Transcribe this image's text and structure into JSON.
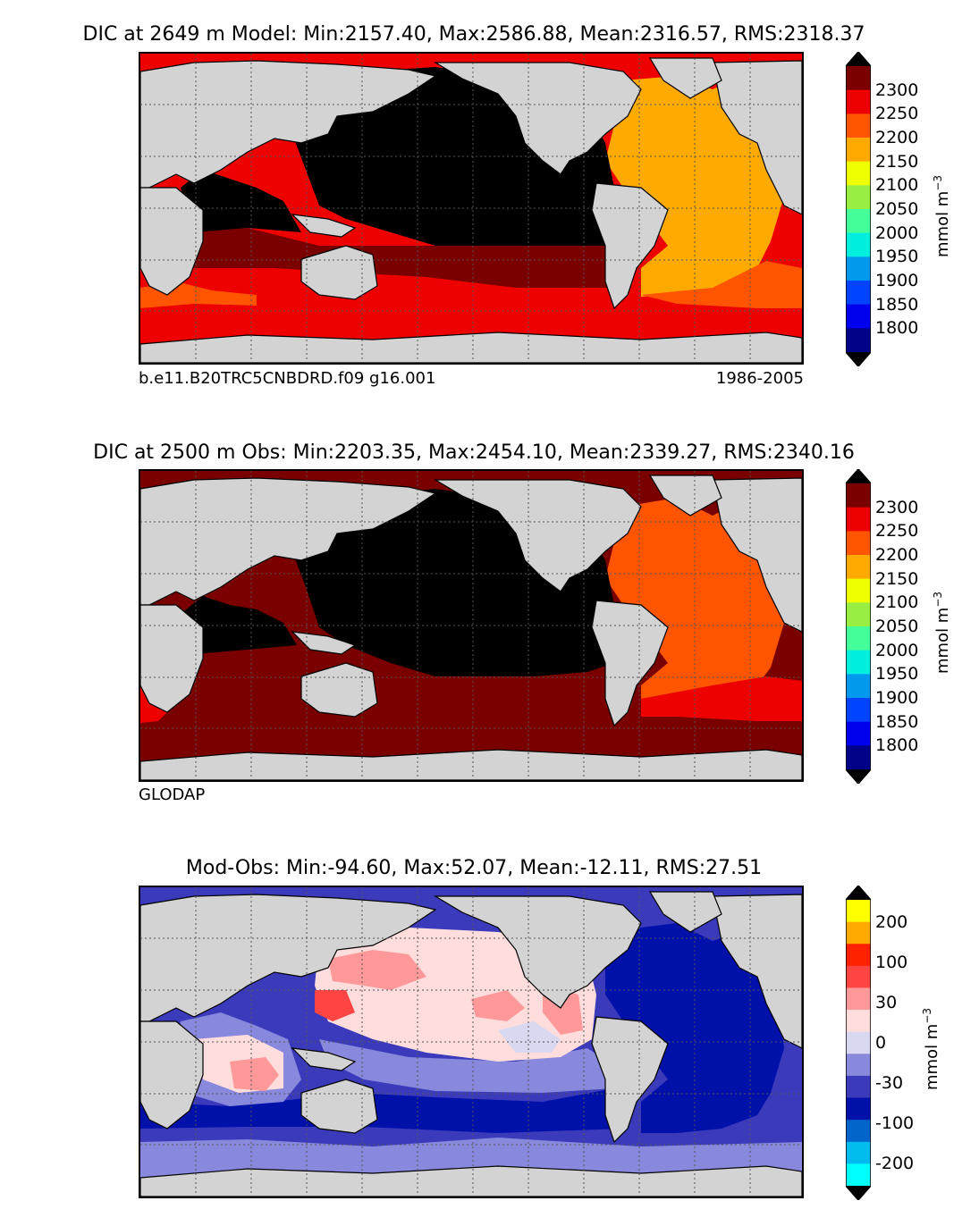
{
  "panels": [
    {
      "id": "model",
      "title": "DIC at 2649 m Model: Min:2157.40, Max:2586.88, Mean:2316.57, RMS:2318.37",
      "footer_left": "b.e11.B20TRC5CNBDRD.f09 g16.001",
      "footer_right": "1986-2005",
      "colorbar": {
        "ticks": [
          "2300",
          "2250",
          "2200",
          "2150",
          "2100",
          "2050",
          "2000",
          "1950",
          "1900",
          "1850",
          "1800"
        ],
        "label": "mmol m",
        "label_exp": "−3",
        "colors": [
          "#000000",
          "#7a0000",
          "#ee0000",
          "#ff5500",
          "#ffaa00",
          "#eeff00",
          "#99ee44",
          "#44ff99",
          "#00eedd",
          "#0099ee",
          "#0044ff",
          "#0000ee",
          "#000088",
          "#000000"
        ]
      }
    },
    {
      "id": "obs",
      "title": "DIC at 2500 m Obs: Min:2203.35, Max:2454.10, Mean:2339.27, RMS:2340.16",
      "footer_left": "GLODAP",
      "footer_right": "",
      "colorbar": {
        "ticks": [
          "2300",
          "2250",
          "2200",
          "2150",
          "2100",
          "2050",
          "2000",
          "1950",
          "1900",
          "1850",
          "1800"
        ],
        "label": "mmol m",
        "label_exp": "−3",
        "colors": [
          "#000000",
          "#7a0000",
          "#ee0000",
          "#ff5500",
          "#ffaa00",
          "#eeff00",
          "#99ee44",
          "#44ff99",
          "#00eedd",
          "#0099ee",
          "#0044ff",
          "#0000ee",
          "#000088",
          "#000000"
        ]
      }
    },
    {
      "id": "diff",
      "title": "Mod-Obs: Min:-94.60, Max:52.07, Mean:-12.11, RMS:27.51",
      "footer_left": "",
      "footer_right": "",
      "colorbar": {
        "ticks": [
          "200",
          "100",
          "30",
          "0",
          "-30",
          "-100",
          "-200"
        ],
        "label": "mmol m",
        "label_exp": "−3",
        "colors": [
          "#000000",
          "#ffff00",
          "#ffaa00",
          "#ff2200",
          "#ff4444",
          "#ff9999",
          "#ffdddd",
          "#d8d8f0",
          "#8888dd",
          "#3a3abb",
          "#0011aa",
          "#0066cc",
          "#00bbee",
          "#00ffff",
          "#000000"
        ]
      }
    }
  ],
  "colors": {
    "land": "#d3d3d3",
    "missing": "#ffffff",
    "coast": "#000000",
    "grid": "#555555"
  }
}
